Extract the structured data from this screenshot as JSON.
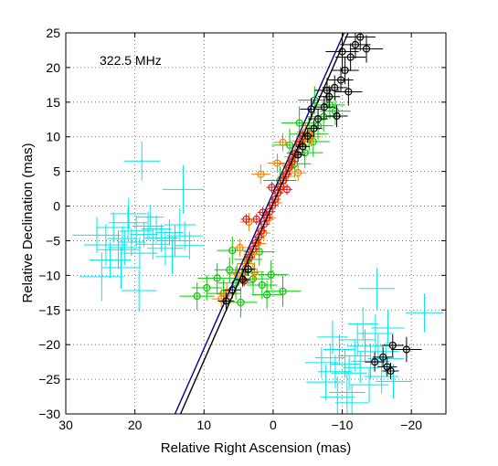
{
  "chart_data": {
    "type": "scatter",
    "title": "",
    "annotation": "322.5 MHz",
    "xlabel": "Relative Right Ascension (mas)",
    "ylabel": "Relative Declination (mas)",
    "xlim": [
      30,
      -25
    ],
    "ylim": [
      -30,
      25
    ],
    "x_ticks": [
      30,
      20,
      10,
      0,
      -10,
      -20
    ],
    "x_tick_labels": [
      "30",
      "20",
      "10",
      "0",
      "−10",
      "−20"
    ],
    "y_ticks": [
      25,
      20,
      15,
      10,
      5,
      0,
      -5,
      -10,
      -15,
      -20,
      -25,
      -30
    ],
    "y_tick_labels": [
      "25",
      "20",
      "15",
      "10",
      "5",
      "0",
      "−5",
      "−10",
      "−15",
      "−20",
      "−25",
      "−30"
    ],
    "grid": true,
    "grid_style": "dotted",
    "lines": [
      {
        "color": "#00008b",
        "points": [
          [
            14.2,
            -30
          ],
          [
            -10.7,
            26
          ]
        ]
      },
      {
        "color": "#000000",
        "points": [
          [
            13.4,
            -30
          ],
          [
            -11.3,
            26
          ]
        ]
      }
    ],
    "series": [
      {
        "color": "#00e5ee",
        "marker": "none",
        "points": [
          [
            25.5,
            -4.2,
            3.5,
            2.6
          ],
          [
            24.2,
            -5.6,
            3.2,
            3.0
          ],
          [
            23.1,
            -3.1,
            2.5,
            2.2
          ],
          [
            22.4,
            -6.3,
            3.0,
            2.8
          ],
          [
            21.8,
            -4.7,
            2.2,
            1.8
          ],
          [
            21.0,
            -2.4,
            2.8,
            2.5
          ],
          [
            20.5,
            -5.2,
            2.0,
            2.0
          ],
          [
            19.8,
            -3.6,
            2.4,
            2.2
          ],
          [
            19.3,
            -6.8,
            2.6,
            2.3
          ],
          [
            18.7,
            -4.1,
            2.0,
            1.8
          ],
          [
            18.1,
            -2.9,
            2.3,
            2.1
          ],
          [
            17.4,
            -5.5,
            2.5,
            2.2
          ],
          [
            16.9,
            -3.3,
            2.1,
            2.0
          ],
          [
            16.2,
            -4.6,
            2.4,
            2.0
          ],
          [
            15.6,
            -6.1,
            2.6,
            2.5
          ],
          [
            15.0,
            -3.8,
            2.0,
            1.9
          ],
          [
            14.2,
            -5.0,
            2.5,
            2.2
          ],
          [
            13.5,
            -2.7,
            2.3,
            2.4
          ],
          [
            12.8,
            -4.3,
            2.6,
            2.1
          ],
          [
            12.1,
            -5.7,
            2.2,
            2.0
          ],
          [
            23.6,
            -7.8,
            3.0,
            2.6
          ],
          [
            22.0,
            -8.9,
            2.8,
            3.0
          ],
          [
            24.8,
            -10.2,
            3.2,
            3.5
          ],
          [
            20.9,
            -1.1,
            2.6,
            2.3
          ],
          [
            19.0,
            6.5,
            2.6,
            2.8
          ],
          [
            13.0,
            2.4,
            3.0,
            3.5
          ],
          [
            19.4,
            -12.2,
            2.5,
            3.0
          ],
          [
            14.6,
            -7.3,
            2.4,
            2.5
          ],
          [
            17.8,
            -1.6,
            2.0,
            1.8
          ],
          [
            21.5,
            -6.0,
            2.4,
            2.6
          ],
          [
            -15.2,
            -21.0,
            3.0,
            2.5
          ],
          [
            -14.1,
            -22.4,
            2.8,
            2.6
          ],
          [
            -13.3,
            -20.2,
            2.6,
            2.4
          ],
          [
            -12.6,
            -23.3,
            2.5,
            2.2
          ],
          [
            -11.8,
            -21.6,
            2.4,
            2.3
          ],
          [
            -11.0,
            -24.1,
            2.6,
            2.5
          ],
          [
            -10.4,
            -22.8,
            2.2,
            2.0
          ],
          [
            -9.6,
            -20.7,
            2.3,
            2.2
          ],
          [
            -9.0,
            -23.9,
            2.5,
            2.4
          ],
          [
            -8.3,
            -21.9,
            2.2,
            2.1
          ],
          [
            -7.6,
            -25.4,
            2.8,
            2.6
          ],
          [
            -7.0,
            -22.6,
            2.4,
            2.2
          ],
          [
            -12.2,
            -19.3,
            2.6,
            2.4
          ],
          [
            -13.9,
            -25.8,
            2.8,
            2.5
          ],
          [
            -10.7,
            -26.9,
            2.6,
            3.0
          ],
          [
            -15.7,
            -24.6,
            2.5,
            2.4
          ],
          [
            -16.3,
            -22.0,
            2.6,
            2.3
          ],
          [
            -14.8,
            -18.4,
            2.6,
            2.8
          ],
          [
            -9.3,
            -27.6,
            2.5,
            3.0
          ],
          [
            -15.0,
            -11.9,
            2.6,
            3.0
          ],
          [
            -21.9,
            -15.4,
            2.7,
            2.8
          ],
          [
            -16.6,
            -17.6,
            2.4,
            2.6
          ],
          [
            -8.6,
            -18.9,
            2.2,
            2.4
          ],
          [
            -17.4,
            -25.3,
            2.6,
            2.5
          ],
          [
            -11.4,
            -28.4,
            2.4,
            2.6
          ],
          [
            -13.0,
            -17.0,
            2.2,
            2.4
          ]
        ]
      },
      {
        "color": "#00cc00",
        "marker": "circle",
        "points": [
          [
            11.0,
            -13.0,
            2.5,
            2.0
          ],
          [
            9.6,
            -11.8,
            2.2,
            1.8
          ],
          [
            8.1,
            -10.4,
            2.8,
            2.2
          ],
          [
            7.2,
            -12.6,
            2.4,
            2.0
          ],
          [
            6.3,
            -9.2,
            2.2,
            1.8
          ],
          [
            5.4,
            -11.1,
            2.6,
            2.4
          ],
          [
            4.1,
            -9.6,
            2.0,
            1.8
          ],
          [
            2.9,
            -10.5,
            2.4,
            2.2
          ],
          [
            1.6,
            -11.4,
            2.2,
            2.0
          ],
          [
            0.3,
            -9.9,
            2.5,
            2.1
          ],
          [
            3.6,
            -7.7,
            2.0,
            1.8
          ],
          [
            5.9,
            -6.4,
            2.2,
            2.0
          ],
          [
            -1.4,
            -12.3,
            2.6,
            2.2
          ],
          [
            -3.1,
            6.1,
            2.4,
            2.0
          ],
          [
            -4.6,
            7.7,
            2.6,
            2.2
          ],
          [
            -5.8,
            9.3,
            2.4,
            2.2
          ],
          [
            -6.5,
            11.6,
            2.2,
            2.0
          ],
          [
            -7.3,
            12.9,
            2.5,
            2.2
          ],
          [
            -8.2,
            14.6,
            2.2,
            2.0
          ],
          [
            -5.2,
            10.4,
            2.8,
            2.4
          ],
          [
            -2.4,
            8.8,
            2.6,
            2.4
          ],
          [
            -3.8,
            12.0,
            2.6,
            2.4
          ],
          [
            -6.0,
            15.3,
            2.4,
            2.0
          ],
          [
            -9.0,
            13.7,
            2.2,
            2.0
          ],
          [
            -1.0,
            3.7,
            2.4,
            2.0
          ],
          [
            2.0,
            -6.6,
            2.2,
            2.0
          ],
          [
            4.7,
            -13.9,
            2.4,
            2.2
          ],
          [
            0.9,
            -12.8,
            2.2,
            2.0
          ]
        ]
      },
      {
        "color": "#ff7f00",
        "marker": "circle",
        "points": [
          [
            6.7,
            -12.7,
            1.5,
            1.5
          ],
          [
            5.2,
            -9.8,
            1.5,
            1.5
          ],
          [
            4.0,
            -8.3,
            1.2,
            1.2
          ],
          [
            3.1,
            -7.0,
            1.2,
            1.2
          ],
          [
            2.2,
            -5.4,
            1.2,
            1.2
          ],
          [
            1.4,
            -3.9,
            1.0,
            1.0
          ],
          [
            0.6,
            -1.7,
            1.0,
            1.0
          ],
          [
            -0.3,
            0.5,
            1.0,
            1.0
          ],
          [
            -1.0,
            2.4,
            1.0,
            1.0
          ],
          [
            -1.8,
            4.3,
            1.2,
            1.2
          ],
          [
            -2.5,
            5.8,
            1.2,
            1.2
          ],
          [
            -3.2,
            7.6,
            1.2,
            1.2
          ],
          [
            -4.0,
            9.4,
            1.3,
            1.3
          ],
          [
            -4.7,
            10.7,
            1.3,
            1.3
          ],
          [
            -2.8,
            7.1,
            1.2,
            1.2
          ],
          [
            -0.6,
            6.2,
            1.4,
            1.4
          ],
          [
            1.8,
            4.6,
            1.4,
            1.4
          ],
          [
            -5.5,
            10.0,
            1.4,
            1.4
          ],
          [
            3.5,
            -2.3,
            1.3,
            1.3
          ],
          [
            -3.6,
            4.8,
            1.2,
            1.2
          ],
          [
            4.8,
            -6.0,
            1.3,
            1.3
          ],
          [
            2.7,
            -9.5,
            1.4,
            1.4
          ],
          [
            -1.4,
            9.2,
            1.3,
            1.3
          ],
          [
            7.5,
            -13.4,
            1.4,
            1.4
          ]
        ]
      },
      {
        "color": "#e41a1c",
        "marker": "circle",
        "points": [
          [
            2.9,
            -6.2,
            0.8,
            0.8
          ],
          [
            2.5,
            -5.3,
            0.8,
            0.8
          ],
          [
            2.1,
            -4.5,
            0.8,
            0.8
          ],
          [
            1.7,
            -3.6,
            0.8,
            0.8
          ],
          [
            1.3,
            -2.6,
            0.8,
            0.8
          ],
          [
            0.9,
            -1.7,
            0.8,
            0.8
          ],
          [
            0.5,
            -0.8,
            0.8,
            0.8
          ],
          [
            0.1,
            0.1,
            0.8,
            0.8
          ],
          [
            -0.3,
            1.0,
            0.8,
            0.8
          ],
          [
            -0.7,
            1.9,
            0.8,
            0.8
          ],
          [
            -1.1,
            2.8,
            0.8,
            0.8
          ],
          [
            -1.5,
            3.7,
            0.8,
            0.8
          ],
          [
            -1.9,
            4.6,
            0.8,
            0.8
          ],
          [
            -2.3,
            5.5,
            0.8,
            0.8
          ],
          [
            -2.7,
            6.4,
            0.8,
            0.8
          ],
          [
            -3.2,
            7.6,
            0.8,
            0.8
          ],
          [
            -3.8,
            8.9,
            0.8,
            0.8
          ],
          [
            -4.3,
            10.1,
            0.8,
            0.8
          ],
          [
            3.4,
            -7.4,
            0.8,
            0.8
          ],
          [
            4.0,
            -9.1,
            0.8,
            0.8
          ],
          [
            1.5,
            -0.9,
            0.8,
            0.8
          ],
          [
            0.2,
            2.7,
            0.8,
            0.8
          ],
          [
            2.4,
            -1.9,
            0.8,
            0.8
          ],
          [
            -2.0,
            2.4,
            0.8,
            0.8
          ],
          [
            3.9,
            -1.9,
            0.8,
            0.8
          ],
          [
            4.2,
            -10.8,
            0.8,
            0.8
          ]
        ]
      },
      {
        "color": "#000000",
        "marker": "circle",
        "points": [
          [
            6.8,
            -13.7,
            1.2,
            1.2
          ],
          [
            5.9,
            -12.1,
            1.2,
            1.2
          ],
          [
            4.4,
            -10.6,
            1.0,
            1.0
          ],
          [
            3.6,
            -9.1,
            1.0,
            1.0
          ],
          [
            -3.6,
            7.4,
            1.0,
            1.0
          ],
          [
            -4.3,
            8.6,
            1.0,
            1.0
          ],
          [
            -5.0,
            10.1,
            1.0,
            1.0
          ],
          [
            -5.9,
            11.2,
            1.2,
            1.2
          ],
          [
            -6.5,
            12.6,
            1.4,
            1.4
          ],
          [
            -7.4,
            14.3,
            1.6,
            1.6
          ],
          [
            -8.1,
            15.8,
            1.6,
            1.6
          ],
          [
            -8.9,
            17.1,
            1.8,
            1.8
          ],
          [
            -9.8,
            18.2,
            1.8,
            1.8
          ],
          [
            -10.4,
            19.6,
            2.0,
            2.0
          ],
          [
            -11.2,
            21.5,
            2.2,
            2.0
          ],
          [
            -11.9,
            23.3,
            2.2,
            2.0
          ],
          [
            -12.6,
            24.4,
            2.2,
            2.0
          ],
          [
            -13.5,
            22.7,
            2.4,
            2.0
          ],
          [
            -9.2,
            13.0,
            1.6,
            1.6
          ],
          [
            -7.8,
            16.7,
            1.8,
            1.8
          ],
          [
            -10.9,
            16.5,
            2.0,
            2.0
          ],
          [
            -5.5,
            14.0,
            1.6,
            1.6
          ],
          [
            -10.0,
            22.3,
            2.4,
            2.4
          ],
          [
            -14.7,
            -22.5,
            1.4,
            1.4
          ],
          [
            -15.9,
            -21.8,
            1.5,
            1.5
          ],
          [
            -16.5,
            -23.2,
            1.4,
            1.4
          ],
          [
            -17.3,
            -20.1,
            1.6,
            1.6
          ],
          [
            -19.3,
            -20.7,
            2.2,
            1.8
          ],
          [
            -17.0,
            -23.8,
            1.2,
            1.2
          ]
        ]
      }
    ]
  }
}
